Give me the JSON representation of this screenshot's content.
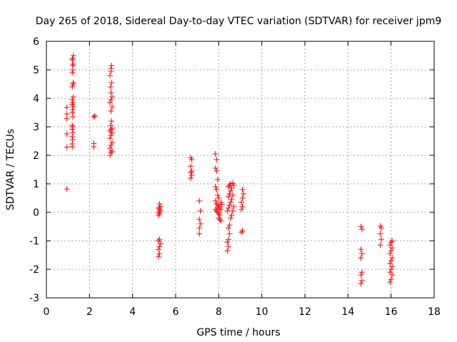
{
  "chart_data": {
    "type": "scatter",
    "title": "Day 265 of 2018, Sidereal Day-to-day VTEC variation (SDTVAR) for receiver jpm9",
    "xlabel": "GPS time / hours",
    "ylabel": "SDTVAR / TECUs",
    "xlim": [
      0,
      18
    ],
    "ylim": [
      -3,
      6
    ],
    "xticks": [
      "0",
      "2",
      "4",
      "6",
      "8",
      "10",
      "12",
      "14",
      "16",
      "18"
    ],
    "yticks": [
      "-3",
      "-2",
      "-1",
      "0",
      "1",
      "2",
      "3",
      "4",
      "5",
      "6"
    ],
    "grid": true,
    "marker": "+",
    "color": "#ff0000",
    "series": [
      {
        "name": "SDTVAR",
        "points": [
          [
            0.95,
            0.82
          ],
          [
            0.95,
            2.28
          ],
          [
            0.95,
            2.75
          ],
          [
            0.95,
            3.28
          ],
          [
            0.95,
            3.45
          ],
          [
            0.95,
            3.68
          ],
          [
            1.2,
            2.3
          ],
          [
            1.2,
            2.4
          ],
          [
            1.22,
            2.55
          ],
          [
            1.2,
            2.65
          ],
          [
            1.23,
            2.8
          ],
          [
            1.2,
            2.92
          ],
          [
            1.22,
            3.0
          ],
          [
            1.2,
            3.05
          ],
          [
            1.23,
            3.35
          ],
          [
            1.2,
            3.5
          ],
          [
            1.22,
            3.6
          ],
          [
            1.25,
            3.7
          ],
          [
            1.2,
            3.78
          ],
          [
            1.23,
            3.85
          ],
          [
            1.2,
            3.95
          ],
          [
            1.25,
            4.05
          ],
          [
            1.2,
            4.4
          ],
          [
            1.23,
            4.5
          ],
          [
            1.25,
            4.55
          ],
          [
            1.2,
            4.9
          ],
          [
            1.23,
            5.0
          ],
          [
            1.22,
            5.15
          ],
          [
            1.25,
            5.2
          ],
          [
            1.2,
            5.35
          ],
          [
            1.22,
            5.4
          ],
          [
            1.25,
            5.5
          ],
          [
            2.2,
            2.3
          ],
          [
            2.2,
            2.42
          ],
          [
            2.2,
            3.35
          ],
          [
            2.25,
            3.38
          ],
          [
            2.95,
            2.0
          ],
          [
            3.0,
            2.1
          ],
          [
            3.05,
            2.15
          ],
          [
            2.95,
            2.25
          ],
          [
            3.0,
            2.35
          ],
          [
            3.05,
            2.45
          ],
          [
            2.95,
            2.6
          ],
          [
            3.0,
            2.7
          ],
          [
            3.05,
            2.78
          ],
          [
            2.95,
            2.85
          ],
          [
            3.0,
            2.9
          ],
          [
            3.05,
            2.95
          ],
          [
            2.98,
            3.05
          ],
          [
            3.02,
            3.2
          ],
          [
            3.0,
            3.55
          ],
          [
            3.05,
            3.7
          ],
          [
            2.95,
            3.85
          ],
          [
            3.0,
            3.95
          ],
          [
            3.05,
            4.05
          ],
          [
            3.0,
            4.2
          ],
          [
            2.98,
            4.4
          ],
          [
            3.02,
            4.55
          ],
          [
            2.95,
            4.8
          ],
          [
            3.0,
            4.95
          ],
          [
            3.0,
            5.05
          ],
          [
            3.02,
            5.15
          ],
          [
            5.2,
            -1.55
          ],
          [
            5.25,
            -1.45
          ],
          [
            5.2,
            -1.3
          ],
          [
            5.25,
            -1.2
          ],
          [
            5.3,
            -1.1
          ],
          [
            5.2,
            -1.0
          ],
          [
            5.25,
            -0.95
          ],
          [
            5.2,
            -0.1
          ],
          [
            5.25,
            -0.05
          ],
          [
            5.2,
            0.0
          ],
          [
            5.3,
            0.05
          ],
          [
            5.25,
            0.1
          ],
          [
            5.2,
            0.15
          ],
          [
            5.3,
            0.2
          ],
          [
            5.25,
            0.3
          ],
          [
            6.7,
            1.2
          ],
          [
            6.75,
            1.3
          ],
          [
            6.7,
            1.4
          ],
          [
            6.75,
            1.45
          ],
          [
            6.7,
            1.62
          ],
          [
            6.75,
            1.85
          ],
          [
            6.7,
            1.92
          ],
          [
            7.1,
            -0.75
          ],
          [
            7.1,
            -0.55
          ],
          [
            7.15,
            -0.4
          ],
          [
            7.1,
            -0.25
          ],
          [
            7.15,
            0.05
          ],
          [
            7.1,
            0.4
          ],
          [
            7.85,
            2.05
          ],
          [
            7.9,
            1.85
          ],
          [
            7.85,
            1.55
          ],
          [
            7.9,
            1.45
          ],
          [
            7.95,
            1.15
          ],
          [
            7.85,
            0.9
          ],
          [
            7.9,
            0.8
          ],
          [
            7.95,
            0.6
          ],
          [
            8.0,
            0.5
          ],
          [
            7.85,
            0.4
          ],
          [
            7.9,
            0.3
          ],
          [
            7.95,
            0.25
          ],
          [
            8.0,
            0.2
          ],
          [
            8.05,
            0.15
          ],
          [
            7.85,
            0.1
          ],
          [
            7.9,
            0.05
          ],
          [
            7.95,
            0.0
          ],
          [
            8.0,
            -0.05
          ],
          [
            8.05,
            -0.1
          ],
          [
            8.1,
            0.35
          ],
          [
            8.15,
            0.28
          ],
          [
            8.0,
            -0.2
          ],
          [
            8.05,
            -0.25
          ],
          [
            8.1,
            -0.3
          ],
          [
            7.95,
            0.15
          ],
          [
            8.1,
            0.1
          ],
          [
            8.4,
            -1.35
          ],
          [
            8.45,
            -1.2
          ],
          [
            8.4,
            -1.05
          ],
          [
            8.45,
            -0.95
          ],
          [
            8.5,
            -0.75
          ],
          [
            8.45,
            -0.55
          ],
          [
            8.5,
            -0.45
          ],
          [
            8.4,
            0.05
          ],
          [
            8.45,
            0.15
          ],
          [
            8.5,
            0.25
          ],
          [
            8.55,
            0.35
          ],
          [
            8.6,
            0.45
          ],
          [
            8.45,
            0.55
          ],
          [
            8.5,
            0.65
          ],
          [
            8.55,
            0.75
          ],
          [
            8.6,
            0.85
          ],
          [
            8.45,
            0.9
          ],
          [
            8.5,
            0.95
          ],
          [
            8.55,
            1.0
          ],
          [
            8.65,
            1.02
          ],
          [
            8.6,
            -0.1
          ],
          [
            8.65,
            0.05
          ],
          [
            8.7,
            0.2
          ],
          [
            8.65,
            0.6
          ],
          [
            8.7,
            0.95
          ],
          [
            8.55,
            -0.2
          ],
          [
            9.05,
            -0.7
          ],
          [
            9.1,
            -0.65
          ],
          [
            9.05,
            0.1
          ],
          [
            9.1,
            0.2
          ],
          [
            9.05,
            0.35
          ],
          [
            9.1,
            0.5
          ],
          [
            9.15,
            0.65
          ],
          [
            9.1,
            0.8
          ],
          [
            14.6,
            -2.5
          ],
          [
            14.65,
            -2.4
          ],
          [
            14.6,
            -2.2
          ],
          [
            14.65,
            -2.1
          ],
          [
            14.6,
            -1.6
          ],
          [
            14.65,
            -1.45
          ],
          [
            14.6,
            -1.3
          ],
          [
            14.65,
            -0.6
          ],
          [
            14.6,
            -0.5
          ],
          [
            15.5,
            -1.15
          ],
          [
            15.55,
            -0.95
          ],
          [
            15.5,
            -0.75
          ],
          [
            15.55,
            -0.55
          ],
          [
            15.5,
            -0.48
          ],
          [
            15.95,
            -2.45
          ],
          [
            16.0,
            -2.35
          ],
          [
            16.05,
            -2.2
          ],
          [
            15.95,
            -2.1
          ],
          [
            16.0,
            -2.0
          ],
          [
            16.05,
            -1.9
          ],
          [
            15.95,
            -1.8
          ],
          [
            16.0,
            -1.7
          ],
          [
            16.05,
            -1.6
          ],
          [
            15.95,
            -1.45
          ],
          [
            16.0,
            -1.35
          ],
          [
            16.05,
            -1.25
          ],
          [
            15.95,
            -1.15
          ],
          [
            16.0,
            -1.05
          ],
          [
            16.05,
            -1.0
          ]
        ]
      }
    ]
  }
}
